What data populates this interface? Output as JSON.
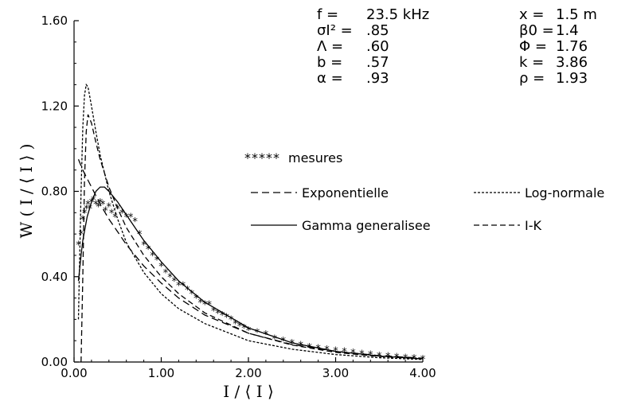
{
  "chart_data": {
    "type": "line",
    "xlabel": "I / ⟨ I ⟩",
    "ylabel": "W ( I / ⟨ I ⟩ )",
    "xlim": [
      0,
      4
    ],
    "ylim": [
      0,
      1.6
    ],
    "x_ticks": [
      0,
      1,
      2,
      3,
      4
    ],
    "x_tick_labels": [
      "0.00",
      "1.00",
      "2.00",
      "3.00",
      "4.00"
    ],
    "y_ticks": [
      0,
      0.4,
      0.8,
      1.2,
      1.6
    ],
    "y_tick_labels": [
      "0.00",
      "0.40",
      "0.80",
      "1.20",
      "1.60"
    ],
    "grid": false,
    "legend_position": "center-right",
    "parameters_left": [
      {
        "label": "f =",
        "value": "23.5  kHz"
      },
      {
        "label": "σI² =",
        "value": ".85"
      },
      {
        "label": "Λ =",
        "value": ".60"
      },
      {
        "label": "b =",
        "value": ".57"
      },
      {
        "label": "α =",
        "value": ".93"
      }
    ],
    "parameters_right": [
      {
        "label": "x =",
        "value": "1.5  m"
      },
      {
        "label": "β0 =",
        "value": "1.4"
      },
      {
        "label": "Φ =",
        "value": "1.76"
      },
      {
        "label": "k =",
        "value": "3.86"
      },
      {
        "label": "ρ =",
        "value": "1.93"
      }
    ],
    "series": [
      {
        "name": "mesures",
        "style": "markers",
        "x": [
          0.05,
          0.08,
          0.1,
          0.12,
          0.14,
          0.16,
          0.18,
          0.2,
          0.22,
          0.25,
          0.28,
          0.3,
          0.33,
          0.36,
          0.4,
          0.43,
          0.47,
          0.5,
          0.55,
          0.6,
          0.65,
          0.7,
          0.75,
          0.8,
          0.85,
          0.9,
          0.95,
          1.0,
          1.05,
          1.1,
          1.15,
          1.2,
          1.25,
          1.3,
          1.35,
          1.4,
          1.45,
          1.5,
          1.55,
          1.6,
          1.65,
          1.7,
          1.75,
          1.8,
          1.85,
          1.9,
          1.95,
          2.0,
          2.1,
          2.2,
          2.3,
          2.4,
          2.5,
          2.6,
          2.7,
          2.8,
          2.9,
          3.0,
          3.1,
          3.2,
          3.3,
          3.4,
          3.5,
          3.6,
          3.7,
          3.8,
          3.9,
          4.0
        ],
        "y": [
          0.55,
          0.6,
          0.67,
          0.7,
          0.72,
          0.74,
          0.72,
          0.75,
          0.76,
          0.74,
          0.73,
          0.75,
          0.74,
          0.71,
          0.73,
          0.7,
          0.68,
          0.72,
          0.7,
          0.68,
          0.68,
          0.66,
          0.6,
          0.55,
          0.53,
          0.5,
          0.48,
          0.45,
          0.42,
          0.4,
          0.38,
          0.36,
          0.36,
          0.34,
          0.32,
          0.3,
          0.28,
          0.27,
          0.27,
          0.24,
          0.23,
          0.22,
          0.21,
          0.2,
          0.18,
          0.17,
          0.16,
          0.15,
          0.14,
          0.13,
          0.11,
          0.1,
          0.09,
          0.08,
          0.07,
          0.065,
          0.06,
          0.055,
          0.05,
          0.045,
          0.04,
          0.035,
          0.03,
          0.028,
          0.025,
          0.02,
          0.018,
          0.015
        ]
      },
      {
        "name": "Exponentielle",
        "style": "long-dash",
        "x": [
          0.05,
          0.1,
          0.15,
          0.2,
          0.3,
          0.4,
          0.5,
          0.6,
          0.8,
          1.0,
          1.2,
          1.5,
          2.0,
          2.5,
          3.0,
          3.5,
          4.0
        ],
        "y": [
          0.95,
          0.9,
          0.86,
          0.82,
          0.74,
          0.67,
          0.61,
          0.55,
          0.45,
          0.37,
          0.3,
          0.22,
          0.135,
          0.082,
          0.05,
          0.03,
          0.018
        ]
      },
      {
        "name": "Log-normale",
        "style": "short-dash",
        "x": [
          0.05,
          0.08,
          0.1,
          0.12,
          0.14,
          0.16,
          0.2,
          0.25,
          0.3,
          0.4,
          0.5,
          0.6,
          0.8,
          1.0,
          1.2,
          1.5,
          2.0,
          2.5,
          3.0,
          3.5,
          4.0
        ],
        "y": [
          0.2,
          0.8,
          1.1,
          1.25,
          1.3,
          1.29,
          1.2,
          1.08,
          0.97,
          0.8,
          0.67,
          0.56,
          0.42,
          0.32,
          0.25,
          0.18,
          0.1,
          0.06,
          0.035,
          0.02,
          0.012
        ]
      },
      {
        "name": "Gamma generalisee",
        "style": "solid",
        "x": [
          0.05,
          0.08,
          0.1,
          0.15,
          0.2,
          0.25,
          0.3,
          0.35,
          0.4,
          0.5,
          0.6,
          0.7,
          0.8,
          1.0,
          1.2,
          1.5,
          2.0,
          2.5,
          3.0,
          3.5,
          4.0
        ],
        "y": [
          0.38,
          0.5,
          0.57,
          0.68,
          0.75,
          0.8,
          0.82,
          0.82,
          0.8,
          0.75,
          0.69,
          0.63,
          0.57,
          0.47,
          0.38,
          0.28,
          0.16,
          0.09,
          0.05,
          0.028,
          0.015
        ]
      },
      {
        "name": "I-K",
        "style": "medium-dash",
        "x": [
          0.08,
          0.1,
          0.12,
          0.14,
          0.16,
          0.2,
          0.25,
          0.3,
          0.4,
          0.5,
          0.6,
          0.8,
          1.0,
          1.2,
          1.5,
          2.0,
          2.5,
          3.0,
          3.5,
          4.0
        ],
        "y": [
          0,
          0.4,
          0.85,
          1.08,
          1.16,
          1.12,
          1.03,
          0.95,
          0.82,
          0.72,
          0.63,
          0.5,
          0.4,
          0.32,
          0.23,
          0.135,
          0.08,
          0.045,
          0.026,
          0.015
        ]
      }
    ]
  }
}
